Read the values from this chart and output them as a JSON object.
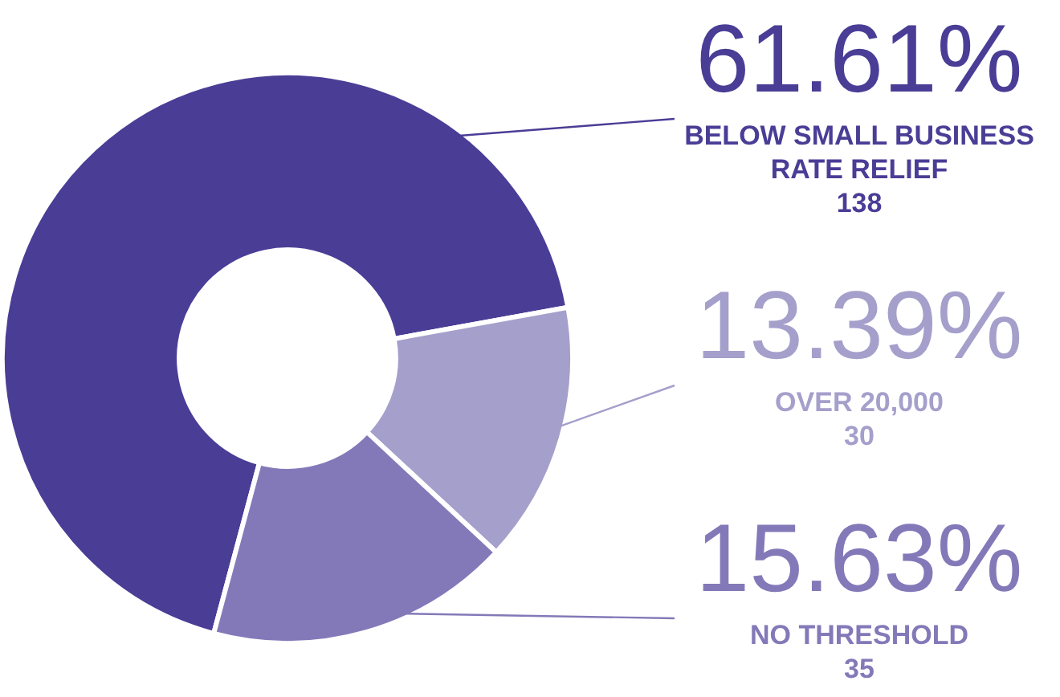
{
  "chart_data": {
    "type": "donut",
    "categories": [
      "BELOW SMALL BUSINESS RATE RELIEF",
      "OVER 20,000",
      "NO THRESHOLD"
    ],
    "values": [
      61.61,
      13.39,
      15.63
    ],
    "value_labels": [
      "61.61%",
      "13.39%",
      "15.63%"
    ],
    "annotations": [
      "138",
      "30",
      "35"
    ],
    "colors": [
      "#4a3d96",
      "#a59fcb",
      "#8479b8"
    ],
    "legend": false
  }
}
